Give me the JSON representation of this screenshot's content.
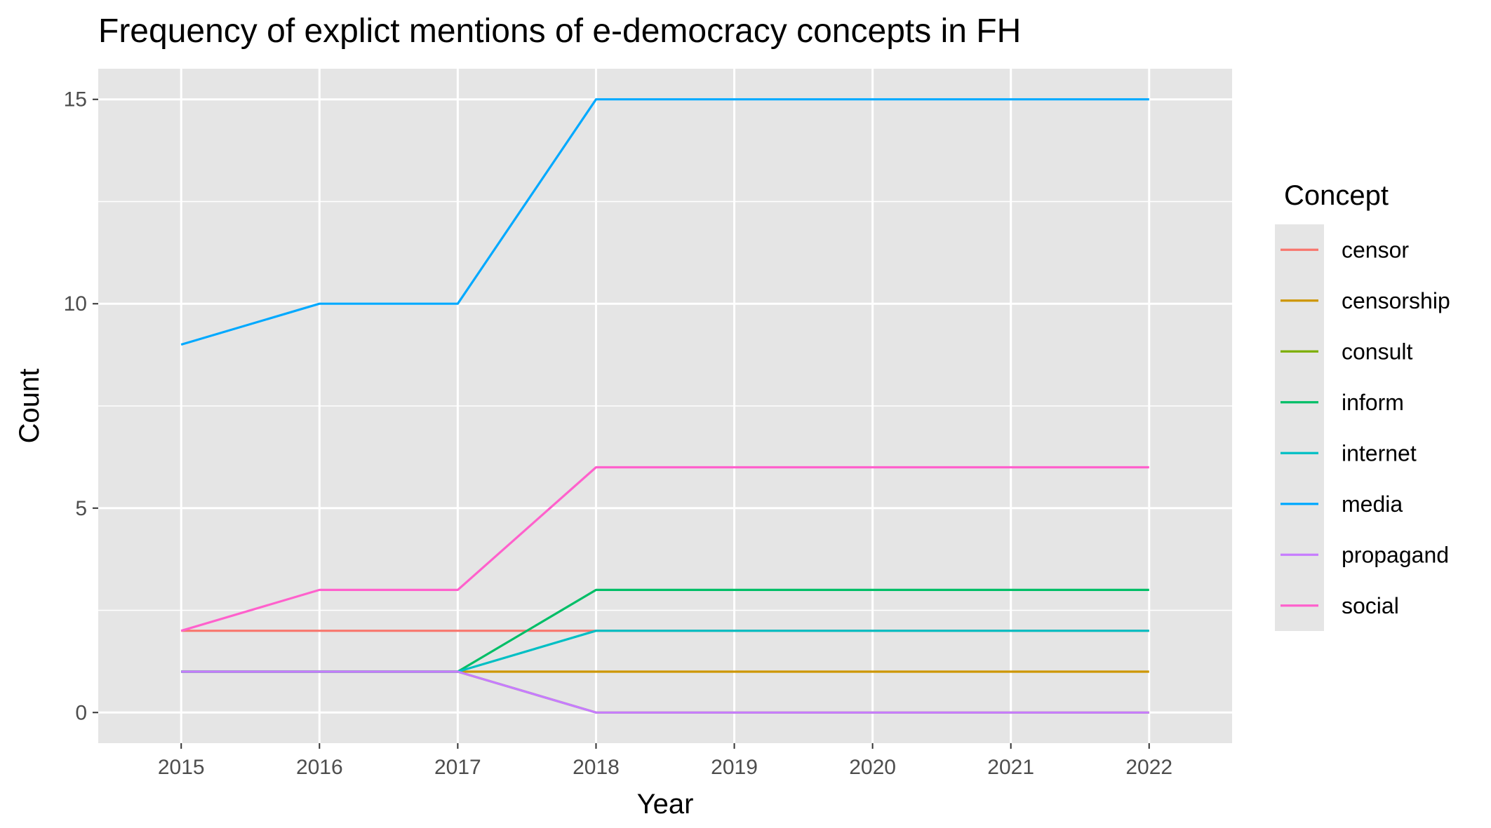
{
  "chart_data": {
    "type": "line",
    "title": "Frequency of explict mentions of e-democracy concepts in FH",
    "xlabel": "Year",
    "ylabel": "Count",
    "x": [
      2015,
      2016,
      2017,
      2018,
      2019,
      2020,
      2021,
      2022
    ],
    "x_ticks": [
      "2015",
      "2016",
      "2017",
      "2018",
      "2019",
      "2020",
      "2021",
      "2022"
    ],
    "y_ticks": [
      "0",
      "5",
      "10",
      "15"
    ],
    "xlim": [
      2014.4,
      2022.6
    ],
    "ylim": [
      -0.75,
      15.75
    ],
    "grid": true,
    "legend": {
      "title": "Concept",
      "position": "right"
    },
    "series": [
      {
        "name": "censor",
        "color": "#F8766D",
        "values": [
          2,
          2,
          2,
          2,
          2,
          2,
          2,
          2
        ]
      },
      {
        "name": "censorship",
        "color": "#CD9600",
        "values": [
          1,
          1,
          1,
          1,
          1,
          1,
          1,
          1
        ]
      },
      {
        "name": "consult",
        "color": "#7CAE00",
        "values": [
          1,
          1,
          1,
          0,
          0,
          0,
          0,
          0
        ]
      },
      {
        "name": "inform",
        "color": "#00BE67",
        "values": [
          1,
          1,
          1,
          3,
          3,
          3,
          3,
          3
        ]
      },
      {
        "name": "internet",
        "color": "#00BFC4",
        "values": [
          1,
          1,
          1,
          2,
          2,
          2,
          2,
          2
        ]
      },
      {
        "name": "media",
        "color": "#00A9FF",
        "values": [
          9,
          10,
          10,
          15,
          15,
          15,
          15,
          15
        ]
      },
      {
        "name": "propagand",
        "color": "#C77CFF",
        "values": [
          1,
          1,
          1,
          0,
          0,
          0,
          0,
          0
        ]
      },
      {
        "name": "social",
        "color": "#FF61CC",
        "values": [
          2,
          3,
          3,
          6,
          6,
          6,
          6,
          6
        ]
      }
    ]
  }
}
